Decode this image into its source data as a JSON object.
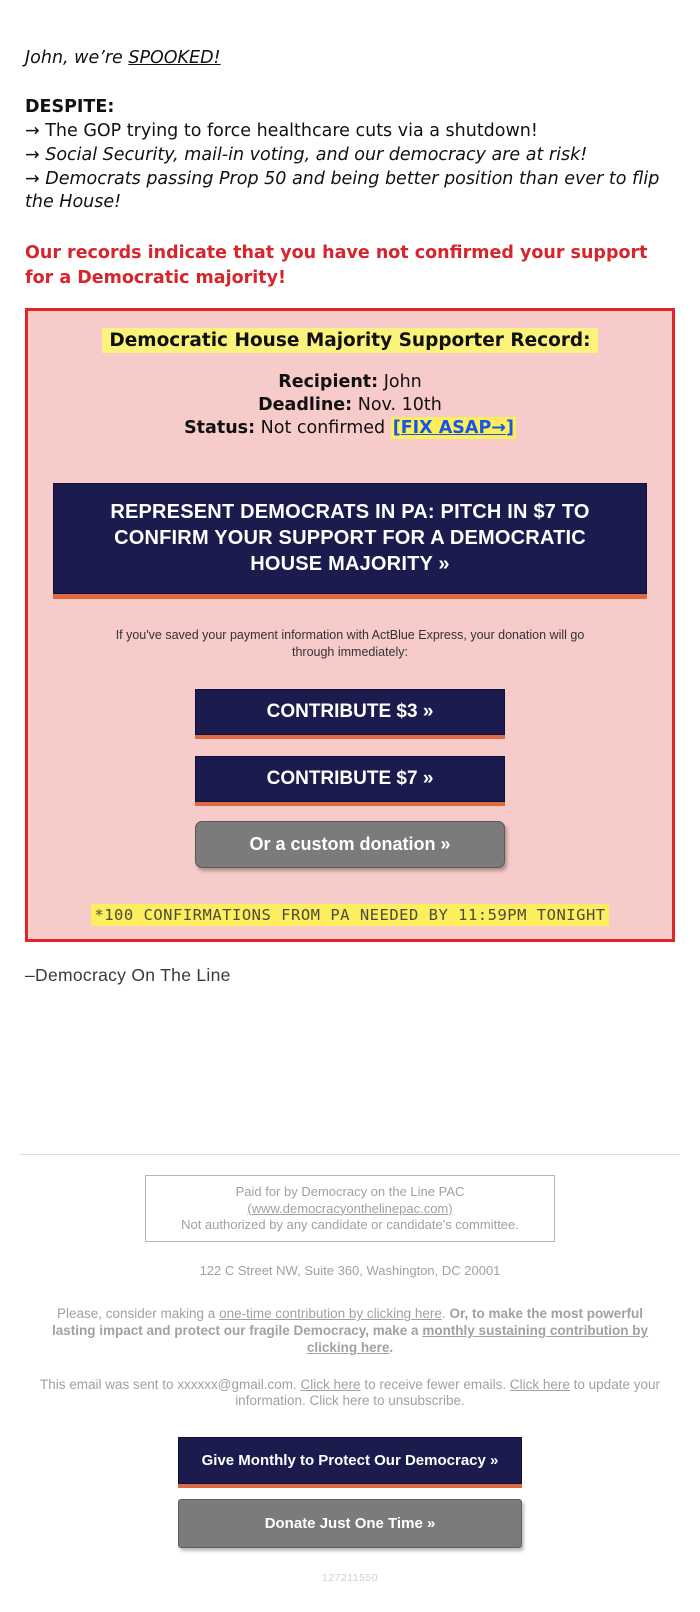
{
  "intro": {
    "greeting_prefix": "John, we’re ",
    "greeting_emphasis": "SPOOKED!",
    "despite_label": "DESPITE:",
    "arrow": "→",
    "bullets": [
      {
        "text": " The GOP trying to force healthcare cuts via a shutdown!"
      },
      {
        "text": " Social Security, mail-in voting, and our democracy are at risk!"
      },
      {
        "text": " Democrats passing Prop 50 and being better position than ever to flip the House!"
      }
    ],
    "alert": "Our records indicate that you have not confirmed your support for a Democratic majority!"
  },
  "record_card": {
    "title": "Democratic House Majority Supporter Record:",
    "recipient_label": "Recipient:",
    "recipient_value": " John",
    "deadline_label": "Deadline:",
    "deadline_value": " Nov. 10th",
    "status_label": "Status:",
    "status_value": " Not confirmed ",
    "fix_open": "[",
    "fix_link": "FIX ASAP→",
    "fix_close": "]",
    "main_cta": "REPRESENT DEMOCRATS IN PA: PITCH IN $7 TO CONFIRM YOUR SUPPORT FOR A DEMOCRATIC HOUSE MAJORITY »",
    "express_note": "If you've saved your payment information with ActBlue Express, your donation will go through immediately:",
    "contribute_3": "CONTRIBUTE $3 »",
    "contribute_7": "CONTRIBUTE $7 »",
    "custom_donation": "Or a custom donation »",
    "footnote": "*100 CONFIRMATIONS FROM PA NEEDED BY 11:59PM TONIGHT"
  },
  "signature": "–Democracy On The Line",
  "footer": {
    "paid_line1": "Paid for by Democracy on the Line PAC",
    "paid_link": "(www.democracyonthelinepac.com)",
    "paid_line3": "Not authorized by any candidate or candidate's committee.",
    "address": "122 C Street NW, Suite 360, Washington, DC 20001",
    "consider_prefix": "Please, consider making a ",
    "consider_link1": "one-time contribution by clicking here",
    "consider_mid": ". ",
    "consider_bold_prefix": "Or, to make the most powerful lasting impact and protect our fragile Democracy, make a ",
    "consider_link2": "monthly sustaining contribution by clicking here",
    "consider_suffix": ".",
    "sent_prefix": "This email was sent to xxxxxx@gmail.com. ",
    "sent_link1": "Click here",
    "sent_mid1": " to receive fewer emails. ",
    "sent_link2": "Click here",
    "sent_mid2": " to update your information. Click here to unsubscribe.",
    "give_monthly": "Give Monthly to Protect Our Democracy »",
    "donate_once": "Donate Just One Time »",
    "ref_number": "127211550"
  },
  "colors": {
    "alert_red": "#d6252b",
    "card_border_red": "#e3242b",
    "card_pink": "#f6cbc9",
    "navy_button": "#1b1b4e",
    "orange_shadow": "#de6a43",
    "highlight_yellow": "#fcee5d",
    "title_highlight_yellow": "#fcf37c",
    "link_blue": "#1656e0",
    "gray_button": "#7b7b7b",
    "footer_gray": "#a1a1a1"
  }
}
